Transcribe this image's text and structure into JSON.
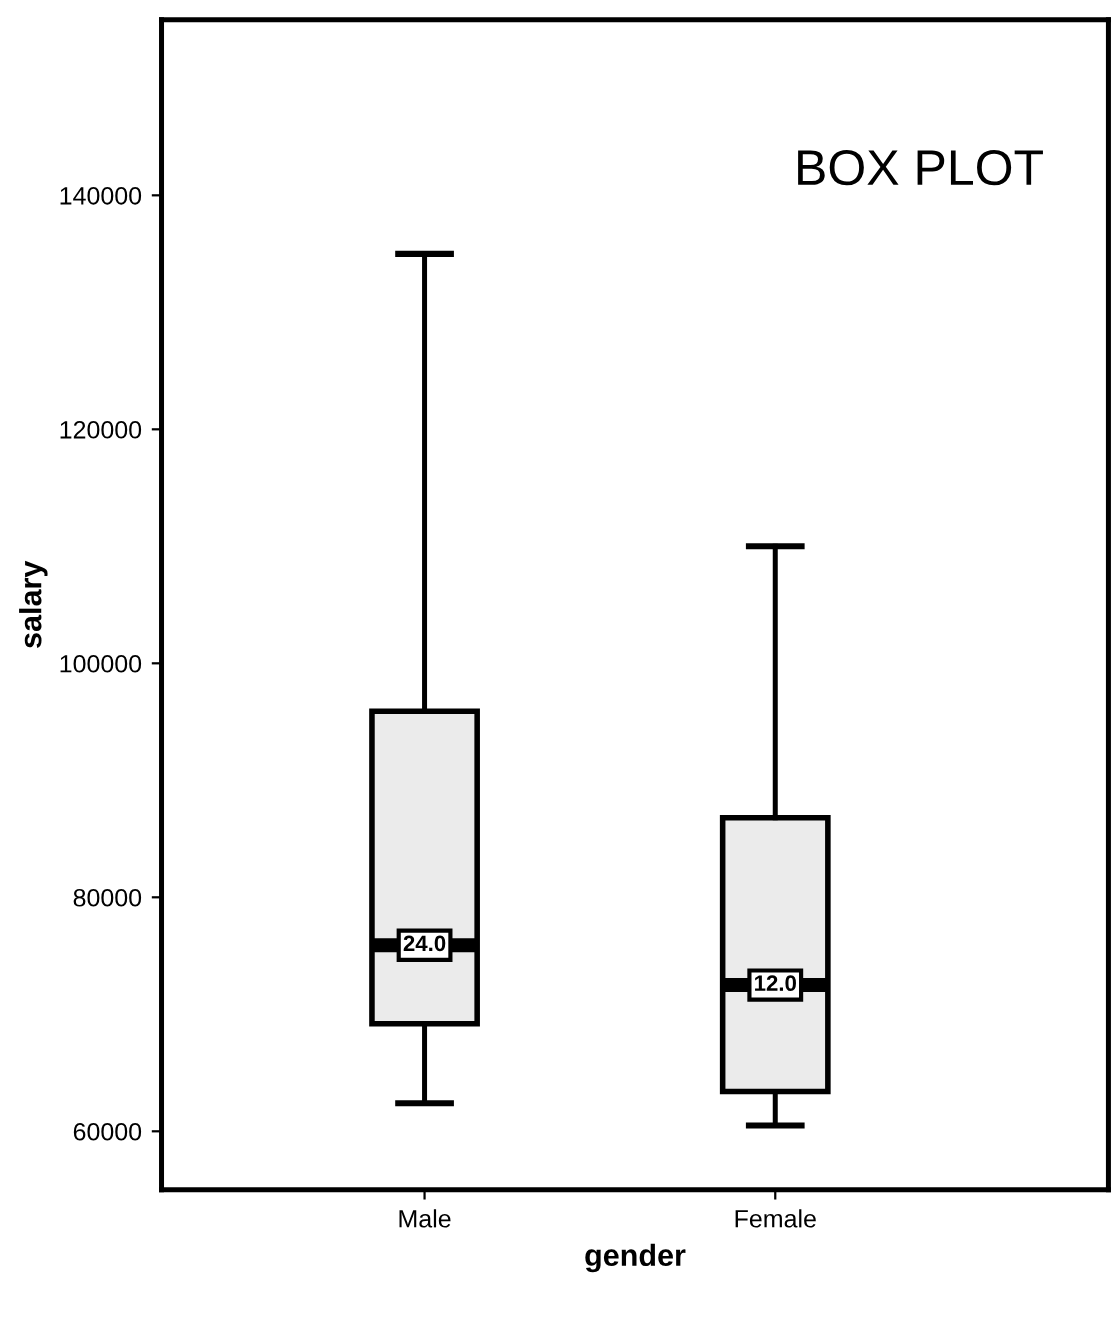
{
  "chart_data": {
    "type": "box",
    "title": "BOX PLOT",
    "xlabel": "gender",
    "ylabel": "salary",
    "categories": [
      "Male",
      "Female"
    ],
    "boxes": [
      {
        "low": 62400,
        "q1": 69200,
        "median": 75900,
        "q3": 95900,
        "high": 135000
      },
      {
        "low": 60500,
        "q1": 63400,
        "median": 72500,
        "q3": 86800,
        "high": 110000
      }
    ],
    "color": "#ebebeb",
    "annotations": [
      {
        "text": "24.0",
        "x": "Male",
        "y": 75900
      },
      {
        "text": "12.0",
        "x": "Female",
        "y": 72500
      }
    ],
    "ylim": [
      55000,
      155000
    ],
    "yticks": [
      60000,
      80000,
      100000,
      120000,
      140000
    ],
    "grid": false,
    "legend": false
  }
}
